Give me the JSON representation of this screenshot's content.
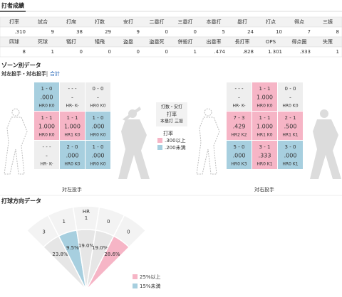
{
  "header": {
    "title": "打者成績"
  },
  "stats": {
    "tables": [
      {
        "headers": [
          "打率",
          "試合",
          "打席",
          "打数",
          "安打",
          "二塁打",
          "三塁打",
          "本塁打",
          "塁打",
          "打点",
          "得点",
          "三振"
        ],
        "values": [
          ".310",
          9,
          38,
          29,
          9,
          0,
          0,
          5,
          24,
          10,
          7,
          8
        ]
      },
      {
        "headers": [
          "四球",
          "死球",
          "犠打",
          "犠飛",
          "盗塁",
          "盗塁死",
          "併殺打",
          "出塁率",
          "長打率",
          "OPS",
          "得点圏",
          "失策"
        ],
        "values": [
          8,
          1,
          0,
          0,
          0,
          0,
          1,
          ".474",
          ".828",
          "1.301",
          ".333",
          1
        ]
      }
    ]
  },
  "zone": {
    "title": "ゾーン別データ",
    "tabs": [
      "対左投手・対右投手",
      "合計"
    ],
    "grids": [
      {
        "label": "対左投手",
        "cells": [
          [
            {
              "ab": "1 - 0",
              "avg": ".000",
              "hk": "HR0 K0",
              "color": "#a7cfdf"
            },
            {
              "ab": "- - -",
              "avg": "-",
              "hk": "HR- K-",
              "color": "#eeeeee"
            },
            {
              "ab": "0 - 0",
              "avg": "-",
              "hk": "HR0 K0",
              "color": "#eeeeee"
            }
          ],
          [
            {
              "ab": "1 - 1",
              "avg": "1.000",
              "hk": "HR0 K0",
              "color": "#f6b5c6"
            },
            {
              "ab": "1 - 1",
              "avg": "1.000",
              "hk": "HR1 K0",
              "color": "#f6b5c6"
            },
            {
              "ab": "1 - 0",
              "avg": ".000",
              "hk": "HR0 K0",
              "color": "#a7cfdf"
            }
          ],
          [
            {
              "ab": "- - -",
              "avg": "-",
              "hk": "HR- K-",
              "color": "#eeeeee"
            },
            {
              "ab": "2 - 0",
              "avg": ".000",
              "hk": "HR0 K0",
              "color": "#a7cfdf"
            },
            {
              "ab": "1 - 0",
              "avg": ".000",
              "hk": "HR0 K0",
              "color": "#a7cfdf"
            }
          ]
        ]
      },
      {
        "label": "対右投手",
        "cells": [
          [
            {
              "ab": "- - -",
              "avg": "-",
              "hk": "HR- K-",
              "color": "#eeeeee"
            },
            {
              "ab": "1 - 1",
              "avg": "1.000",
              "hk": "HR0 K0",
              "color": "#f6b5c6"
            },
            {
              "ab": "0 - 0",
              "avg": "-",
              "hk": "HR0 K0",
              "color": "#eeeeee"
            }
          ],
          [
            {
              "ab": "7 - 3",
              "avg": ".429",
              "hk": "HR2 K2",
              "color": "#f6b5c6"
            },
            {
              "ab": "1 - 1",
              "avg": "1.000",
              "hk": "HR1 K0",
              "color": "#f6b5c6"
            },
            {
              "ab": "2 - 1",
              "avg": ".500",
              "hk": "HR1 K1",
              "color": "#f6b5c6"
            }
          ],
          [
            {
              "ab": "5 - 0",
              "avg": ".000",
              "hk": "HR0 K3",
              "color": "#a7cfdf"
            },
            {
              "ab": "3 - 1",
              "avg": ".333",
              "hk": "HR0 K1",
              "color": "#f6b5c6"
            },
            {
              "ab": "3 - 0",
              "avg": ".000",
              "hk": "HR0 K1",
              "color": "#a7cfdf"
            }
          ]
        ]
      }
    ],
    "legend": {
      "lines": [
        "打数・安打",
        "打率",
        "本塁打 三振"
      ],
      "key_title": "打率",
      "keys": [
        {
          "label": ".300以上",
          "color": "#f6b5c6"
        },
        {
          "label": ".200未満",
          "color": "#a7cfdf"
        }
      ]
    }
  },
  "direction": {
    "title": "打球方向データ",
    "hr_label": "HR",
    "sectors": [
      {
        "hr": 3,
        "pct": "23.8%",
        "color": "#e6e6e6"
      },
      {
        "hr": 1,
        "pct": "9.5%",
        "color": "#a7cfdf"
      },
      {
        "hr": 1,
        "pct": "19.0%",
        "color": "#e6e6e6"
      },
      {
        "hr": 0,
        "pct": "19.0%",
        "color": "#e6e6e6"
      },
      {
        "hr": 0,
        "pct": "28.6%",
        "color": "#f6b5c6"
      }
    ],
    "keys": [
      {
        "label": "25%以上",
        "color": "#f6b5c6"
      },
      {
        "label": "15%未満",
        "color": "#a7cfdf"
      }
    ]
  }
}
